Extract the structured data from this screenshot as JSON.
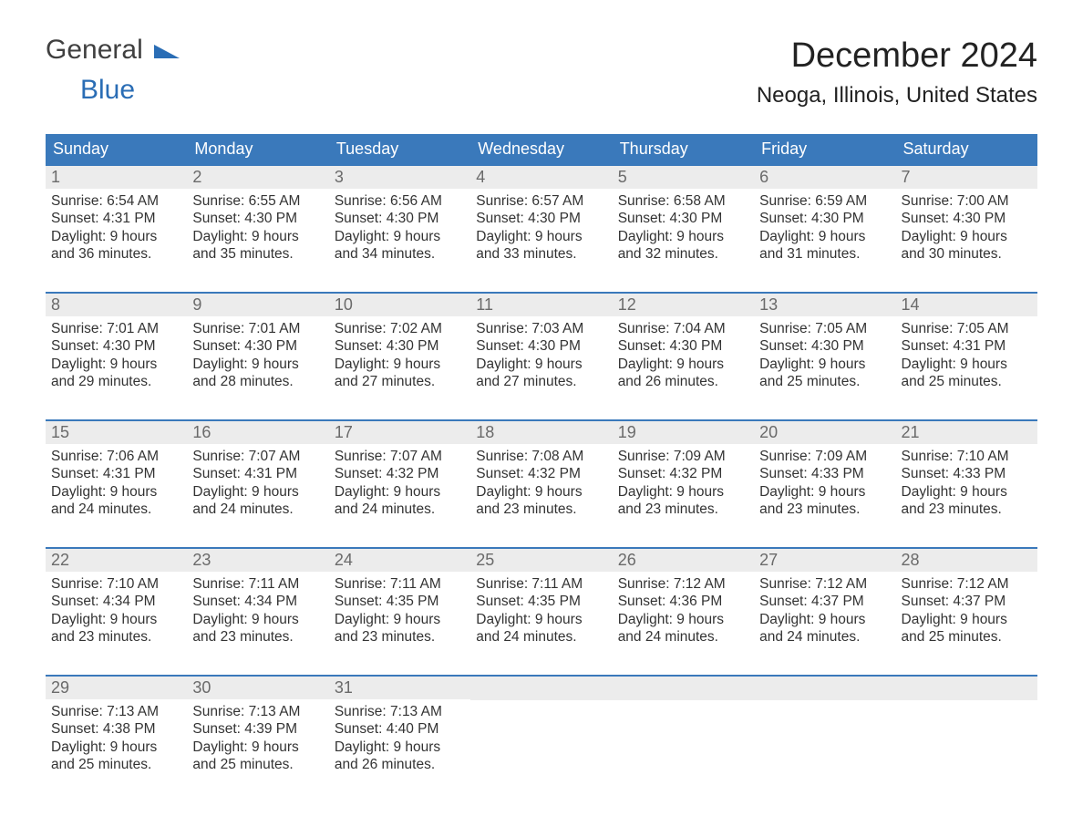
{
  "logo": {
    "text1": "General",
    "text2": "Blue"
  },
  "title": "December 2024",
  "location": "Neoga, Illinois, United States",
  "colors": {
    "header_bg": "#3a79bb",
    "header_text": "#ffffff",
    "daynum_bg": "#ececec",
    "daynum_text": "#6a6a6a",
    "body_text": "#333333",
    "accent": "#2a6db5",
    "week_border": "#3a79bb",
    "background": "#ffffff"
  },
  "weekdays": [
    "Sunday",
    "Monday",
    "Tuesday",
    "Wednesday",
    "Thursday",
    "Friday",
    "Saturday"
  ],
  "weeks": [
    [
      {
        "n": "1",
        "sr": "Sunrise: 6:54 AM",
        "ss": "Sunset: 4:31 PM",
        "d1": "Daylight: 9 hours",
        "d2": "and 36 minutes."
      },
      {
        "n": "2",
        "sr": "Sunrise: 6:55 AM",
        "ss": "Sunset: 4:30 PM",
        "d1": "Daylight: 9 hours",
        "d2": "and 35 minutes."
      },
      {
        "n": "3",
        "sr": "Sunrise: 6:56 AM",
        "ss": "Sunset: 4:30 PM",
        "d1": "Daylight: 9 hours",
        "d2": "and 34 minutes."
      },
      {
        "n": "4",
        "sr": "Sunrise: 6:57 AM",
        "ss": "Sunset: 4:30 PM",
        "d1": "Daylight: 9 hours",
        "d2": "and 33 minutes."
      },
      {
        "n": "5",
        "sr": "Sunrise: 6:58 AM",
        "ss": "Sunset: 4:30 PM",
        "d1": "Daylight: 9 hours",
        "d2": "and 32 minutes."
      },
      {
        "n": "6",
        "sr": "Sunrise: 6:59 AM",
        "ss": "Sunset: 4:30 PM",
        "d1": "Daylight: 9 hours",
        "d2": "and 31 minutes."
      },
      {
        "n": "7",
        "sr": "Sunrise: 7:00 AM",
        "ss": "Sunset: 4:30 PM",
        "d1": "Daylight: 9 hours",
        "d2": "and 30 minutes."
      }
    ],
    [
      {
        "n": "8",
        "sr": "Sunrise: 7:01 AM",
        "ss": "Sunset: 4:30 PM",
        "d1": "Daylight: 9 hours",
        "d2": "and 29 minutes."
      },
      {
        "n": "9",
        "sr": "Sunrise: 7:01 AM",
        "ss": "Sunset: 4:30 PM",
        "d1": "Daylight: 9 hours",
        "d2": "and 28 minutes."
      },
      {
        "n": "10",
        "sr": "Sunrise: 7:02 AM",
        "ss": "Sunset: 4:30 PM",
        "d1": "Daylight: 9 hours",
        "d2": "and 27 minutes."
      },
      {
        "n": "11",
        "sr": "Sunrise: 7:03 AM",
        "ss": "Sunset: 4:30 PM",
        "d1": "Daylight: 9 hours",
        "d2": "and 27 minutes."
      },
      {
        "n": "12",
        "sr": "Sunrise: 7:04 AM",
        "ss": "Sunset: 4:30 PM",
        "d1": "Daylight: 9 hours",
        "d2": "and 26 minutes."
      },
      {
        "n": "13",
        "sr": "Sunrise: 7:05 AM",
        "ss": "Sunset: 4:30 PM",
        "d1": "Daylight: 9 hours",
        "d2": "and 25 minutes."
      },
      {
        "n": "14",
        "sr": "Sunrise: 7:05 AM",
        "ss": "Sunset: 4:31 PM",
        "d1": "Daylight: 9 hours",
        "d2": "and 25 minutes."
      }
    ],
    [
      {
        "n": "15",
        "sr": "Sunrise: 7:06 AM",
        "ss": "Sunset: 4:31 PM",
        "d1": "Daylight: 9 hours",
        "d2": "and 24 minutes."
      },
      {
        "n": "16",
        "sr": "Sunrise: 7:07 AM",
        "ss": "Sunset: 4:31 PM",
        "d1": "Daylight: 9 hours",
        "d2": "and 24 minutes."
      },
      {
        "n": "17",
        "sr": "Sunrise: 7:07 AM",
        "ss": "Sunset: 4:32 PM",
        "d1": "Daylight: 9 hours",
        "d2": "and 24 minutes."
      },
      {
        "n": "18",
        "sr": "Sunrise: 7:08 AM",
        "ss": "Sunset: 4:32 PM",
        "d1": "Daylight: 9 hours",
        "d2": "and 23 minutes."
      },
      {
        "n": "19",
        "sr": "Sunrise: 7:09 AM",
        "ss": "Sunset: 4:32 PM",
        "d1": "Daylight: 9 hours",
        "d2": "and 23 minutes."
      },
      {
        "n": "20",
        "sr": "Sunrise: 7:09 AM",
        "ss": "Sunset: 4:33 PM",
        "d1": "Daylight: 9 hours",
        "d2": "and 23 minutes."
      },
      {
        "n": "21",
        "sr": "Sunrise: 7:10 AM",
        "ss": "Sunset: 4:33 PM",
        "d1": "Daylight: 9 hours",
        "d2": "and 23 minutes."
      }
    ],
    [
      {
        "n": "22",
        "sr": "Sunrise: 7:10 AM",
        "ss": "Sunset: 4:34 PM",
        "d1": "Daylight: 9 hours",
        "d2": "and 23 minutes."
      },
      {
        "n": "23",
        "sr": "Sunrise: 7:11 AM",
        "ss": "Sunset: 4:34 PM",
        "d1": "Daylight: 9 hours",
        "d2": "and 23 minutes."
      },
      {
        "n": "24",
        "sr": "Sunrise: 7:11 AM",
        "ss": "Sunset: 4:35 PM",
        "d1": "Daylight: 9 hours",
        "d2": "and 23 minutes."
      },
      {
        "n": "25",
        "sr": "Sunrise: 7:11 AM",
        "ss": "Sunset: 4:35 PM",
        "d1": "Daylight: 9 hours",
        "d2": "and 24 minutes."
      },
      {
        "n": "26",
        "sr": "Sunrise: 7:12 AM",
        "ss": "Sunset: 4:36 PM",
        "d1": "Daylight: 9 hours",
        "d2": "and 24 minutes."
      },
      {
        "n": "27",
        "sr": "Sunrise: 7:12 AM",
        "ss": "Sunset: 4:37 PM",
        "d1": "Daylight: 9 hours",
        "d2": "and 24 minutes."
      },
      {
        "n": "28",
        "sr": "Sunrise: 7:12 AM",
        "ss": "Sunset: 4:37 PM",
        "d1": "Daylight: 9 hours",
        "d2": "and 25 minutes."
      }
    ],
    [
      {
        "n": "29",
        "sr": "Sunrise: 7:13 AM",
        "ss": "Sunset: 4:38 PM",
        "d1": "Daylight: 9 hours",
        "d2": "and 25 minutes."
      },
      {
        "n": "30",
        "sr": "Sunrise: 7:13 AM",
        "ss": "Sunset: 4:39 PM",
        "d1": "Daylight: 9 hours",
        "d2": "and 25 minutes."
      },
      {
        "n": "31",
        "sr": "Sunrise: 7:13 AM",
        "ss": "Sunset: 4:40 PM",
        "d1": "Daylight: 9 hours",
        "d2": "and 26 minutes."
      },
      {
        "empty": true
      },
      {
        "empty": true
      },
      {
        "empty": true
      },
      {
        "empty": true
      }
    ]
  ]
}
